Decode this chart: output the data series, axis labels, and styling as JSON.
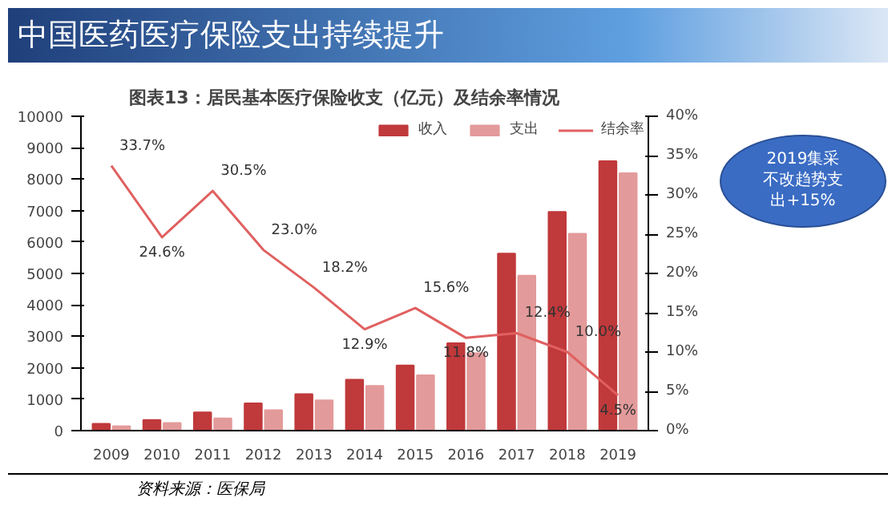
{
  "chart_data": {
    "type": "bar",
    "title": "中国医药医疗保险支出持续提升",
    "subtitle": "图表13：居民基本医疗保险收支（亿元）及结余率情况",
    "categories": [
      "2009",
      "2010",
      "2011",
      "2012",
      "2013",
      "2014",
      "2015",
      "2016",
      "2017",
      "2018",
      "2019"
    ],
    "series": [
      {
        "name": "收入",
        "color": "#c0393b",
        "values": [
          220,
          340,
          580,
          870,
          1160,
          1620,
          2070,
          2780,
          5630,
          6960,
          8570
        ]
      },
      {
        "name": "支出",
        "color": "#e39a9a",
        "values": [
          140,
          240,
          390,
          650,
          960,
          1420,
          1760,
          2460,
          4930,
          6260,
          8190
        ]
      },
      {
        "name": "结余率",
        "type": "line",
        "axis": "y2",
        "color": "#e06060",
        "values": [
          33.7,
          24.6,
          30.5,
          23.0,
          18.2,
          12.9,
          15.6,
          11.8,
          12.4,
          10.0,
          4.5
        ],
        "value_labels": [
          "33.7%",
          "24.6%",
          "30.5%",
          "23.0%",
          "18.2%",
          "12.9%",
          "15.6%",
          "11.8%",
          "12.4%",
          "10.0%",
          "4.5%"
        ]
      }
    ],
    "ylim": [
      0,
      10000
    ],
    "yticks": [
      0,
      1000,
      2000,
      3000,
      4000,
      5000,
      6000,
      7000,
      8000,
      9000,
      10000
    ],
    "y2lim": [
      0,
      40
    ],
    "y2ticks": [
      {
        "value": 0,
        "label": "0%"
      },
      {
        "value": 5,
        "label": "5%"
      },
      {
        "value": 10,
        "label": "10%"
      },
      {
        "value": 15,
        "label": "15%"
      },
      {
        "value": 20,
        "label": "20%"
      },
      {
        "value": 25,
        "label": "25%"
      },
      {
        "value": 30,
        "label": "30%"
      },
      {
        "value": 35,
        "label": "35%"
      },
      {
        "value": 40,
        "label": "40%"
      }
    ],
    "legend": "top right",
    "annotations": [
      "2019集采不改趋势支出+15%",
      "资料来源：医保局"
    ]
  }
}
